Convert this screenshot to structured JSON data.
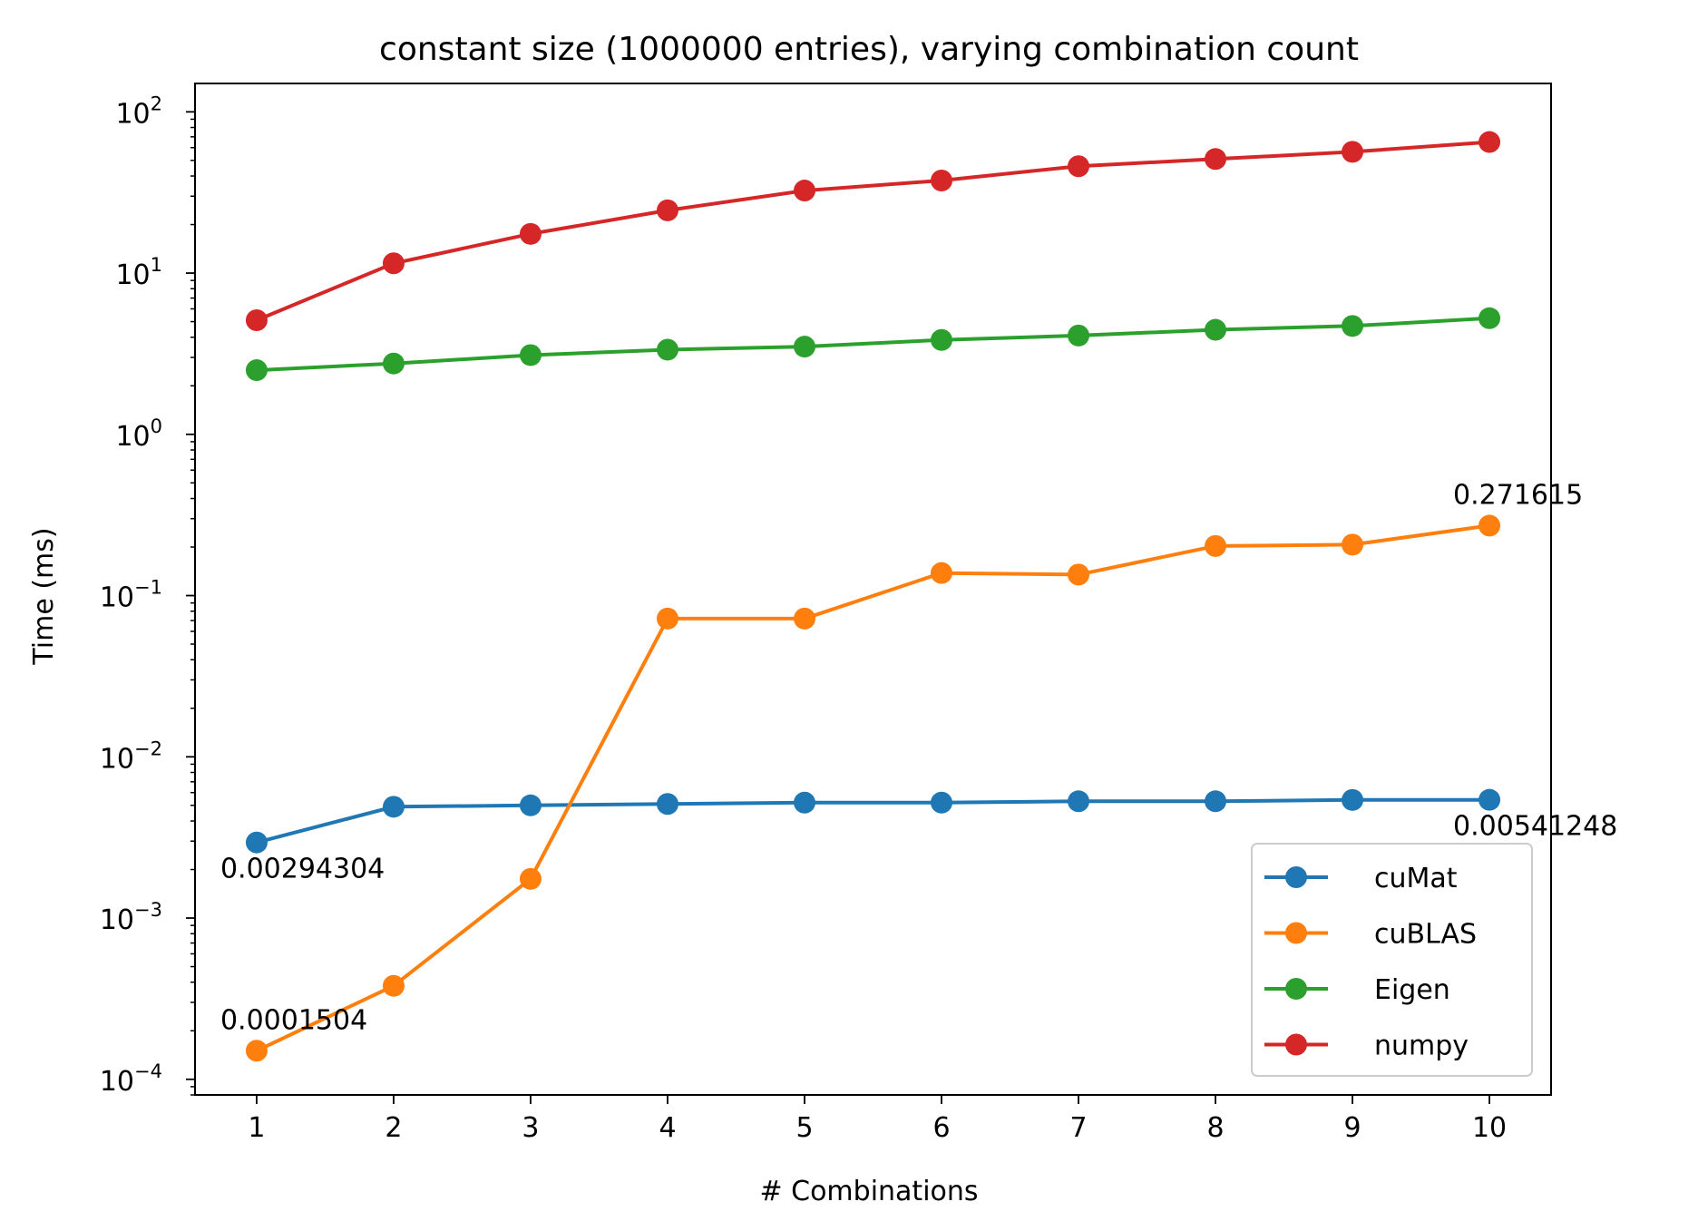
{
  "chart_data": {
    "type": "line",
    "title": "constant size (1000000 entries), varying combination count",
    "xlabel": "# Combinations",
    "ylabel": "Time (ms)",
    "yscale": "log",
    "xlim": [
      0.55,
      10.45
    ],
    "ylim": [
      8e-05,
      150
    ],
    "x": [
      1,
      2,
      3,
      4,
      5,
      6,
      7,
      8,
      9,
      10
    ],
    "xticks": [
      "1",
      "2",
      "3",
      "4",
      "5",
      "6",
      "7",
      "8",
      "9",
      "10"
    ],
    "yticks": [
      {
        "base": "10",
        "exp": "2",
        "value": 100
      },
      {
        "base": "10",
        "exp": "1",
        "value": 10
      },
      {
        "base": "10",
        "exp": "0",
        "value": 1
      },
      {
        "base": "10",
        "exp": "−1",
        "value": 0.1
      },
      {
        "base": "10",
        "exp": "−2",
        "value": 0.01
      },
      {
        "base": "10",
        "exp": "−3",
        "value": 0.001
      },
      {
        "base": "10",
        "exp": "−4",
        "value": 0.0001
      }
    ],
    "grid": false,
    "legend_position": "lower-right",
    "series": [
      {
        "name": "cuMat",
        "color": "#1f77b4",
        "values": [
          0.00294304,
          0.0049,
          0.005,
          0.0051,
          0.0052,
          0.0052,
          0.0053,
          0.0053,
          0.0054,
          0.00541248
        ]
      },
      {
        "name": "cuBLAS",
        "color": "#ff7f0e",
        "values": [
          0.0001504,
          0.00038,
          0.00175,
          0.072,
          0.072,
          0.138,
          0.135,
          0.203,
          0.207,
          0.271615
        ]
      },
      {
        "name": "Eigen",
        "color": "#2ca02c",
        "values": [
          2.5,
          2.75,
          3.1,
          3.35,
          3.5,
          3.85,
          4.1,
          4.45,
          4.7,
          5.25
        ]
      },
      {
        "name": "numpy",
        "color": "#d62728",
        "values": [
          5.1,
          11.5,
          17.5,
          24.5,
          32.5,
          37.5,
          46,
          51,
          56.5,
          65
        ]
      }
    ],
    "annotations": [
      {
        "text": "0.00294304",
        "series": "cuMat",
        "x": 1,
        "value": 0.00294304,
        "where": "below"
      },
      {
        "text": "0.00541248",
        "series": "cuMat",
        "x": 10,
        "value": 0.00541248,
        "where": "below"
      },
      {
        "text": "0.0001504",
        "series": "cuBLAS",
        "x": 1,
        "value": 0.0001504,
        "where": "above"
      },
      {
        "text": "0.271615",
        "series": "cuBLAS",
        "x": 10,
        "value": 0.271615,
        "where": "above"
      }
    ]
  }
}
